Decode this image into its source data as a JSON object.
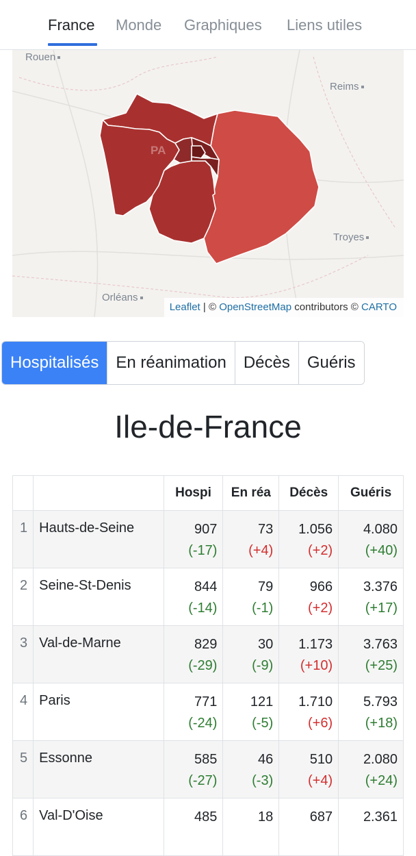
{
  "nav": {
    "tabs": [
      {
        "label": "France",
        "active": true
      },
      {
        "label": "Monde",
        "active": false
      },
      {
        "label": "Graphiques",
        "active": false
      },
      {
        "label": "Liens utiles",
        "active": false
      }
    ]
  },
  "map": {
    "cities": {
      "rouen": "Rouen",
      "reims": "Reims",
      "paris": "PA",
      "troyes": "Troyes",
      "orleans": "Orléans"
    },
    "attribution": {
      "leaflet": "Leaflet",
      "sep": " | © ",
      "osm": "OpenStreetMap",
      "contrib": " contributors © ",
      "carto": "CARTO"
    }
  },
  "toggle": {
    "buttons": [
      {
        "label": "Hospitalisés",
        "active": true
      },
      {
        "label": "En réanimation",
        "active": false
      },
      {
        "label": "Décès",
        "active": false
      },
      {
        "label": "Guéris",
        "active": false
      }
    ]
  },
  "region": {
    "title": "Ile-de-France"
  },
  "table": {
    "headers": {
      "rank": "",
      "name": "",
      "hospi": "Hospi",
      "rea": "En réa",
      "deces": "Décès",
      "gueris": "Guéris"
    },
    "rows": [
      {
        "rank": "1",
        "name": "Hauts-de-Seine",
        "hospi": "907",
        "hospi_d": "(-17)",
        "rea": "73",
        "rea_d": "(+4)",
        "deces": "1.056",
        "deces_d": "(+2)",
        "gueris": "4.080",
        "gueris_d": "(+40)"
      },
      {
        "rank": "2",
        "name": "Seine-St-Denis",
        "hospi": "844",
        "hospi_d": "(-14)",
        "rea": "79",
        "rea_d": "(-1)",
        "deces": "966",
        "deces_d": "(+2)",
        "gueris": "3.376",
        "gueris_d": "(+17)"
      },
      {
        "rank": "3",
        "name": "Val-de-Marne",
        "hospi": "829",
        "hospi_d": "(-29)",
        "rea": "30",
        "rea_d": "(-9)",
        "deces": "1.173",
        "deces_d": "(+10)",
        "gueris": "3.763",
        "gueris_d": "(+25)"
      },
      {
        "rank": "4",
        "name": "Paris",
        "hospi": "771",
        "hospi_d": "(-24)",
        "rea": "121",
        "rea_d": "(-5)",
        "deces": "1.710",
        "deces_d": "(+6)",
        "gueris": "5.793",
        "gueris_d": "(+18)"
      },
      {
        "rank": "5",
        "name": "Essonne",
        "hospi": "585",
        "hospi_d": "(-27)",
        "rea": "46",
        "rea_d": "(-3)",
        "deces": "510",
        "deces_d": "(+4)",
        "gueris": "2.080",
        "gueris_d": "(+24)"
      },
      {
        "rank": "6",
        "name": "Val-D'Oise",
        "hospi": "485",
        "hospi_d": "",
        "rea": "18",
        "rea_d": "",
        "deces": "687",
        "deces_d": "",
        "gueris": "2.361",
        "gueris_d": ""
      }
    ]
  },
  "colors": {
    "accent": "#3b82f6",
    "decrease": "#2e7d32",
    "increase": "#d32f2f",
    "region_dark": "#7a1f1f",
    "region_mid": "#a8312f",
    "region_light": "#cf4b45"
  }
}
